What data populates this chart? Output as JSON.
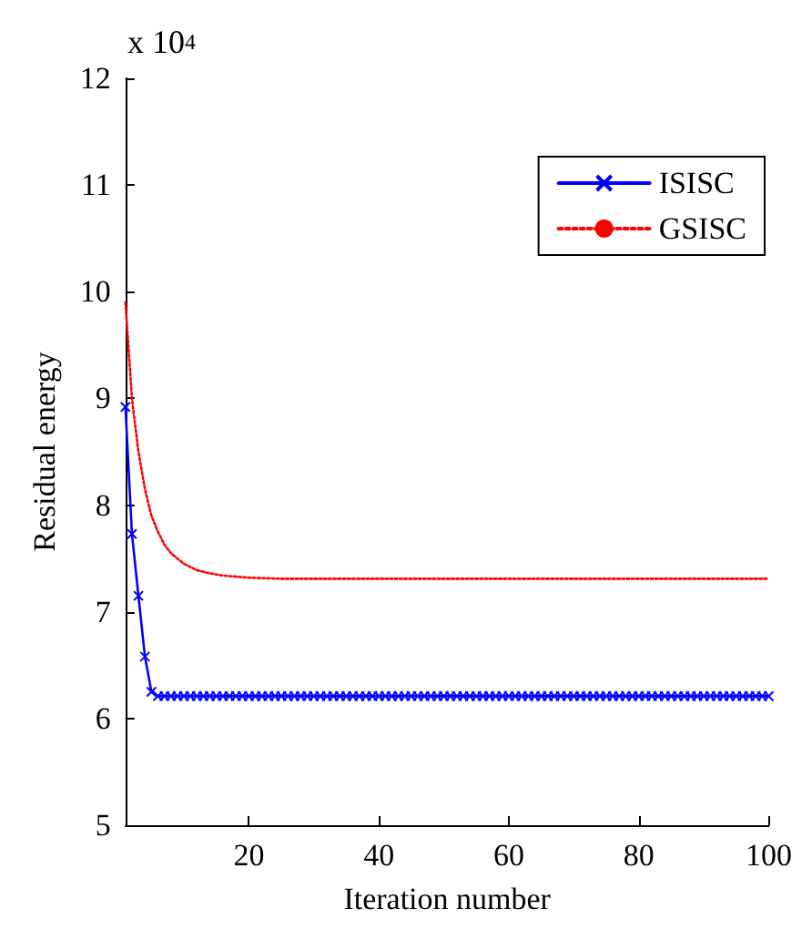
{
  "chart_data": {
    "type": "line",
    "xlabel": "Iteration number",
    "ylabel": "Residual energy",
    "annotations": [
      "x 10$^{4}$"
    ],
    "xlim": [
      1,
      100
    ],
    "xticks": [
      20,
      40,
      60,
      80,
      100
    ],
    "ylim": [
      5,
      12
    ],
    "yticks": [
      5,
      6,
      7,
      8,
      9,
      10,
      11,
      12
    ],
    "grid": false,
    "legend": "top right",
    "series": [
      {
        "name": "ISISC",
        "color": "#0000ff",
        "marker": "cross",
        "line_style": "solid",
        "x": [
          1,
          2,
          3,
          4,
          5,
          6,
          7,
          8,
          9,
          10,
          11,
          12,
          13,
          14,
          15,
          16,
          17,
          18,
          19,
          20,
          21,
          22,
          23,
          24,
          25,
          26,
          27,
          28,
          29,
          30,
          31,
          32,
          33,
          34,
          35,
          36,
          37,
          38,
          39,
          40,
          41,
          42,
          43,
          44,
          45,
          46,
          47,
          48,
          49,
          50,
          51,
          52,
          53,
          54,
          55,
          56,
          57,
          58,
          59,
          60,
          61,
          62,
          63,
          64,
          65,
          66,
          67,
          68,
          69,
          70,
          71,
          72,
          73,
          74,
          75,
          76,
          77,
          78,
          79,
          80,
          81,
          82,
          83,
          84,
          85,
          86,
          87,
          88,
          89,
          90,
          91,
          92,
          93,
          94,
          95,
          96,
          97,
          98,
          99,
          100
        ],
        "values": [
          8.92,
          7.73,
          7.15,
          6.58,
          6.25,
          6.21,
          6.21,
          6.21,
          6.21,
          6.21,
          6.21,
          6.21,
          6.21,
          6.21,
          6.21,
          6.21,
          6.21,
          6.21,
          6.21,
          6.21,
          6.21,
          6.21,
          6.21,
          6.21,
          6.21,
          6.21,
          6.21,
          6.21,
          6.21,
          6.21,
          6.21,
          6.21,
          6.21,
          6.21,
          6.21,
          6.21,
          6.21,
          6.21,
          6.21,
          6.21,
          6.21,
          6.21,
          6.21,
          6.21,
          6.21,
          6.21,
          6.21,
          6.21,
          6.21,
          6.21,
          6.21,
          6.21,
          6.21,
          6.21,
          6.21,
          6.21,
          6.21,
          6.21,
          6.21,
          6.21,
          6.21,
          6.21,
          6.21,
          6.21,
          6.21,
          6.21,
          6.21,
          6.21,
          6.21,
          6.21,
          6.21,
          6.21,
          6.21,
          6.21,
          6.21,
          6.21,
          6.21,
          6.21,
          6.21,
          6.21,
          6.21,
          6.21,
          6.21,
          6.21,
          6.21,
          6.21,
          6.21,
          6.21,
          6.21,
          6.21,
          6.21,
          6.21,
          6.21,
          6.21,
          6.21,
          6.21,
          6.21,
          6.21,
          6.21,
          6.21
        ]
      },
      {
        "name": "GSISC",
        "color": "#ff0000",
        "marker": "none",
        "line_style": "dotted",
        "x": [
          1,
          2,
          3,
          4,
          5,
          6,
          7,
          8,
          10,
          12,
          14,
          16,
          18,
          20,
          25,
          30,
          40,
          60,
          80,
          100
        ],
        "values": [
          9.9,
          9.0,
          8.5,
          8.15,
          7.9,
          7.75,
          7.63,
          7.55,
          7.45,
          7.39,
          7.36,
          7.34,
          7.33,
          7.32,
          7.31,
          7.31,
          7.31,
          7.31,
          7.31,
          7.31
        ]
      }
    ]
  }
}
